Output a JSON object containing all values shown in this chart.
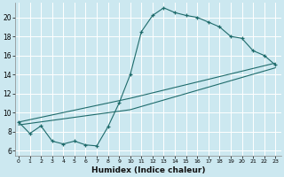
{
  "xlabel": "Humidex (Indice chaleur)",
  "bg_color": "#cce8f0",
  "grid_color": "#ffffff",
  "line_color": "#1e6b6b",
  "x_ticks": [
    0,
    1,
    2,
    3,
    4,
    5,
    6,
    7,
    8,
    9,
    10,
    11,
    12,
    13,
    14,
    15,
    16,
    17,
    18,
    19,
    20,
    21,
    22,
    23
  ],
  "y_ticks": [
    6,
    8,
    10,
    12,
    14,
    16,
    18,
    20
  ],
  "xlim": [
    -0.3,
    23.5
  ],
  "ylim": [
    5.5,
    21.5
  ],
  "line1_x": [
    0,
    1,
    2,
    3,
    4,
    5,
    6,
    7,
    8,
    9,
    10,
    11,
    12,
    13,
    14,
    15,
    16,
    17,
    18,
    19,
    20,
    21,
    22,
    23
  ],
  "line1_y": [
    9.0,
    7.8,
    8.6,
    7.0,
    6.7,
    7.0,
    6.6,
    6.5,
    8.5,
    11.0,
    14.0,
    18.5,
    20.2,
    21.0,
    20.5,
    20.2,
    20.0,
    19.5,
    19.0,
    18.0,
    17.8,
    16.5,
    16.0,
    15.0
  ],
  "line2_x": [
    0,
    10,
    23
  ],
  "line2_y": [
    8.7,
    10.3,
    14.7
  ],
  "line3_x": [
    0,
    10,
    23
  ],
  "line3_y": [
    9.0,
    11.5,
    15.2
  ]
}
